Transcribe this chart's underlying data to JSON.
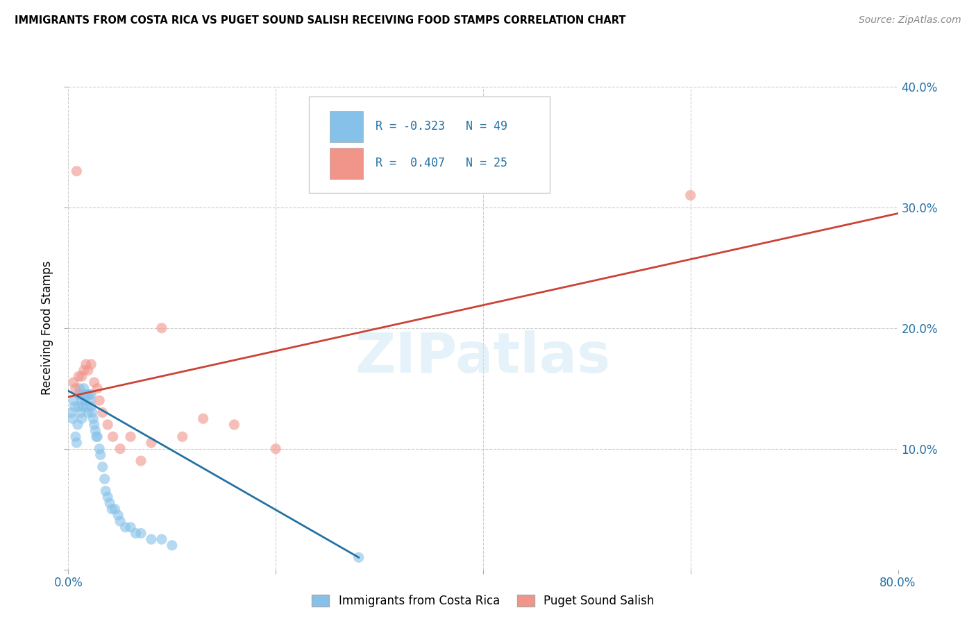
{
  "title": "IMMIGRANTS FROM COSTA RICA VS PUGET SOUND SALISH RECEIVING FOOD STAMPS CORRELATION CHART",
  "source": "Source: ZipAtlas.com",
  "ylabel": "Receiving Food Stamps",
  "xlim": [
    0,
    0.8
  ],
  "ylim": [
    0,
    0.4
  ],
  "xticks": [
    0.0,
    0.2,
    0.4,
    0.6,
    0.8
  ],
  "yticks": [
    0.0,
    0.1,
    0.2,
    0.3,
    0.4
  ],
  "blue_color": "#85c1e9",
  "pink_color": "#f1948a",
  "blue_line_color": "#2471a3",
  "pink_line_color": "#cb4335",
  "R_blue": -0.323,
  "N_blue": 49,
  "R_pink": 0.407,
  "N_pink": 25,
  "legend_label_blue": "Immigrants from Costa Rica",
  "legend_label_pink": "Puget Sound Salish",
  "watermark": "ZIPatlas",
  "blue_scatter_x": [
    0.003,
    0.004,
    0.005,
    0.006,
    0.007,
    0.008,
    0.009,
    0.01,
    0.01,
    0.011,
    0.012,
    0.013,
    0.013,
    0.014,
    0.015,
    0.015,
    0.016,
    0.017,
    0.018,
    0.019,
    0.02,
    0.021,
    0.022,
    0.022,
    0.023,
    0.024,
    0.025,
    0.026,
    0.027,
    0.028,
    0.03,
    0.031,
    0.033,
    0.035,
    0.036,
    0.038,
    0.04,
    0.042,
    0.045,
    0.048,
    0.05,
    0.055,
    0.06,
    0.065,
    0.07,
    0.08,
    0.09,
    0.1,
    0.28
  ],
  "blue_scatter_y": [
    0.13,
    0.125,
    0.14,
    0.135,
    0.11,
    0.105,
    0.12,
    0.135,
    0.145,
    0.15,
    0.13,
    0.14,
    0.125,
    0.135,
    0.145,
    0.15,
    0.14,
    0.145,
    0.135,
    0.13,
    0.145,
    0.14,
    0.135,
    0.145,
    0.13,
    0.125,
    0.12,
    0.115,
    0.11,
    0.11,
    0.1,
    0.095,
    0.085,
    0.075,
    0.065,
    0.06,
    0.055,
    0.05,
    0.05,
    0.045,
    0.04,
    0.035,
    0.035,
    0.03,
    0.03,
    0.025,
    0.025,
    0.02,
    0.01
  ],
  "pink_scatter_x": [
    0.005,
    0.007,
    0.01,
    0.013,
    0.015,
    0.017,
    0.019,
    0.022,
    0.025,
    0.028,
    0.03,
    0.033,
    0.038,
    0.043,
    0.05,
    0.06,
    0.07,
    0.08,
    0.09,
    0.11,
    0.13,
    0.16,
    0.2,
    0.6,
    0.008
  ],
  "pink_scatter_y": [
    0.155,
    0.15,
    0.16,
    0.16,
    0.165,
    0.17,
    0.165,
    0.17,
    0.155,
    0.15,
    0.14,
    0.13,
    0.12,
    0.11,
    0.1,
    0.11,
    0.09,
    0.105,
    0.2,
    0.11,
    0.125,
    0.12,
    0.1,
    0.31,
    0.33
  ],
  "blue_trend_x": [
    0.0,
    0.28
  ],
  "blue_trend_y": [
    0.148,
    0.01
  ],
  "pink_trend_x": [
    0.0,
    0.8
  ],
  "pink_trend_y": [
    0.143,
    0.295
  ],
  "background_color": "#ffffff",
  "grid_color": "#cccccc"
}
